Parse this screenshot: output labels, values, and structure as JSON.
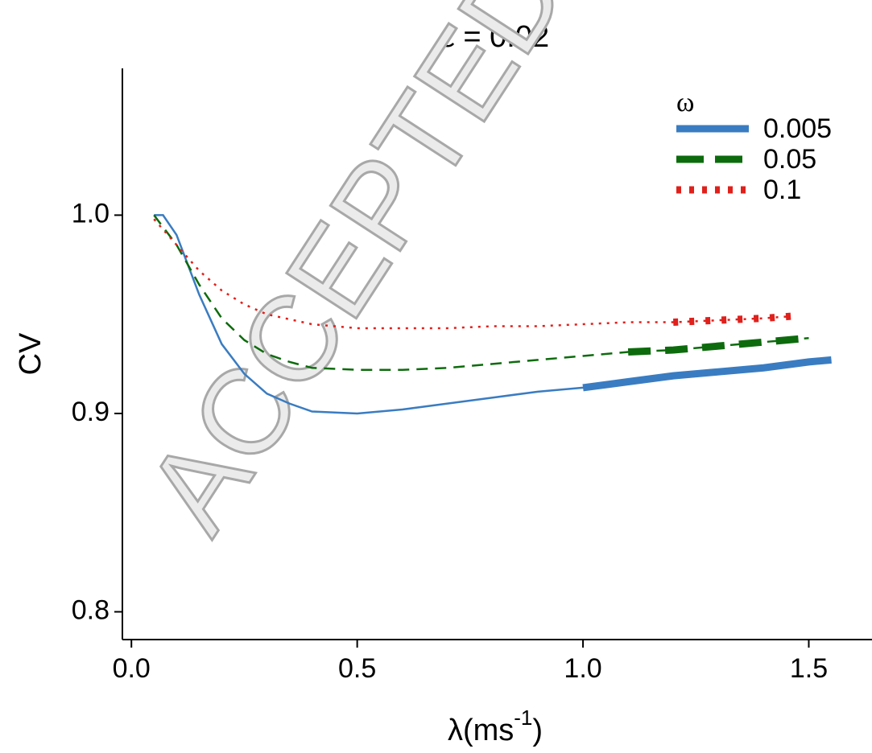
{
  "chart_data": {
    "type": "line",
    "title": "ε = 0.02",
    "xlabel": {
      "main": "λ(ms",
      "superscript": "-1",
      "suffix": ")"
    },
    "ylabel": "CV",
    "watermark": "ACCEPTED MANUSCRIPT",
    "legend_title": "ω",
    "legend": "top-right",
    "xlim": [
      -0.02,
      1.64
    ],
    "ylim": [
      0.786,
      1.074
    ],
    "xticks": [
      {
        "value": 0,
        "label": "0.0"
      },
      0.5,
      {
        "value": 1,
        "label": "1.0"
      },
      1.5
    ],
    "yticks": [
      0.8,
      0.9,
      {
        "value": 1,
        "label": "1.0"
      }
    ],
    "series": [
      {
        "name": "0.005",
        "color": "#3a7cc1",
        "dash": "solid",
        "thick_from": 0.97,
        "x": [
          0.05,
          0.07,
          0.1,
          0.15,
          0.2,
          0.25,
          0.3,
          0.35,
          0.4,
          0.5,
          0.6,
          0.7,
          0.8,
          0.9,
          1.0,
          1.1,
          1.2,
          1.3,
          1.4,
          1.5,
          1.55
        ],
        "values": [
          1.0,
          1.0,
          0.99,
          0.96,
          0.935,
          0.92,
          0.91,
          0.905,
          0.901,
          0.9,
          0.902,
          0.905,
          0.908,
          0.911,
          0.913,
          0.916,
          0.919,
          0.921,
          0.923,
          0.926,
          0.927
        ]
      },
      {
        "name": "0.05",
        "color": "#0d6b0d",
        "dash": "dashed",
        "thick_from": 1.07,
        "x": [
          0.05,
          0.1,
          0.15,
          0.2,
          0.25,
          0.3,
          0.35,
          0.4,
          0.5,
          0.6,
          0.7,
          0.8,
          0.9,
          1.0,
          1.1,
          1.2,
          1.3,
          1.4,
          1.5
        ],
        "values": [
          1.0,
          0.985,
          0.965,
          0.948,
          0.937,
          0.93,
          0.926,
          0.923,
          0.922,
          0.922,
          0.923,
          0.925,
          0.927,
          0.929,
          0.931,
          0.932,
          0.934,
          0.936,
          0.938
        ]
      },
      {
        "name": "0.1",
        "color": "#e0201b",
        "dash": "dotted",
        "thick_from": 1.18,
        "x": [
          0.05,
          0.1,
          0.15,
          0.2,
          0.25,
          0.3,
          0.4,
          0.5,
          0.6,
          0.7,
          0.8,
          0.9,
          1.0,
          1.1,
          1.2,
          1.3,
          1.4,
          1.46
        ],
        "values": [
          0.998,
          0.985,
          0.972,
          0.962,
          0.955,
          0.95,
          0.945,
          0.943,
          0.943,
          0.943,
          0.944,
          0.944,
          0.945,
          0.946,
          0.946,
          0.947,
          0.948,
          0.949
        ]
      }
    ]
  }
}
